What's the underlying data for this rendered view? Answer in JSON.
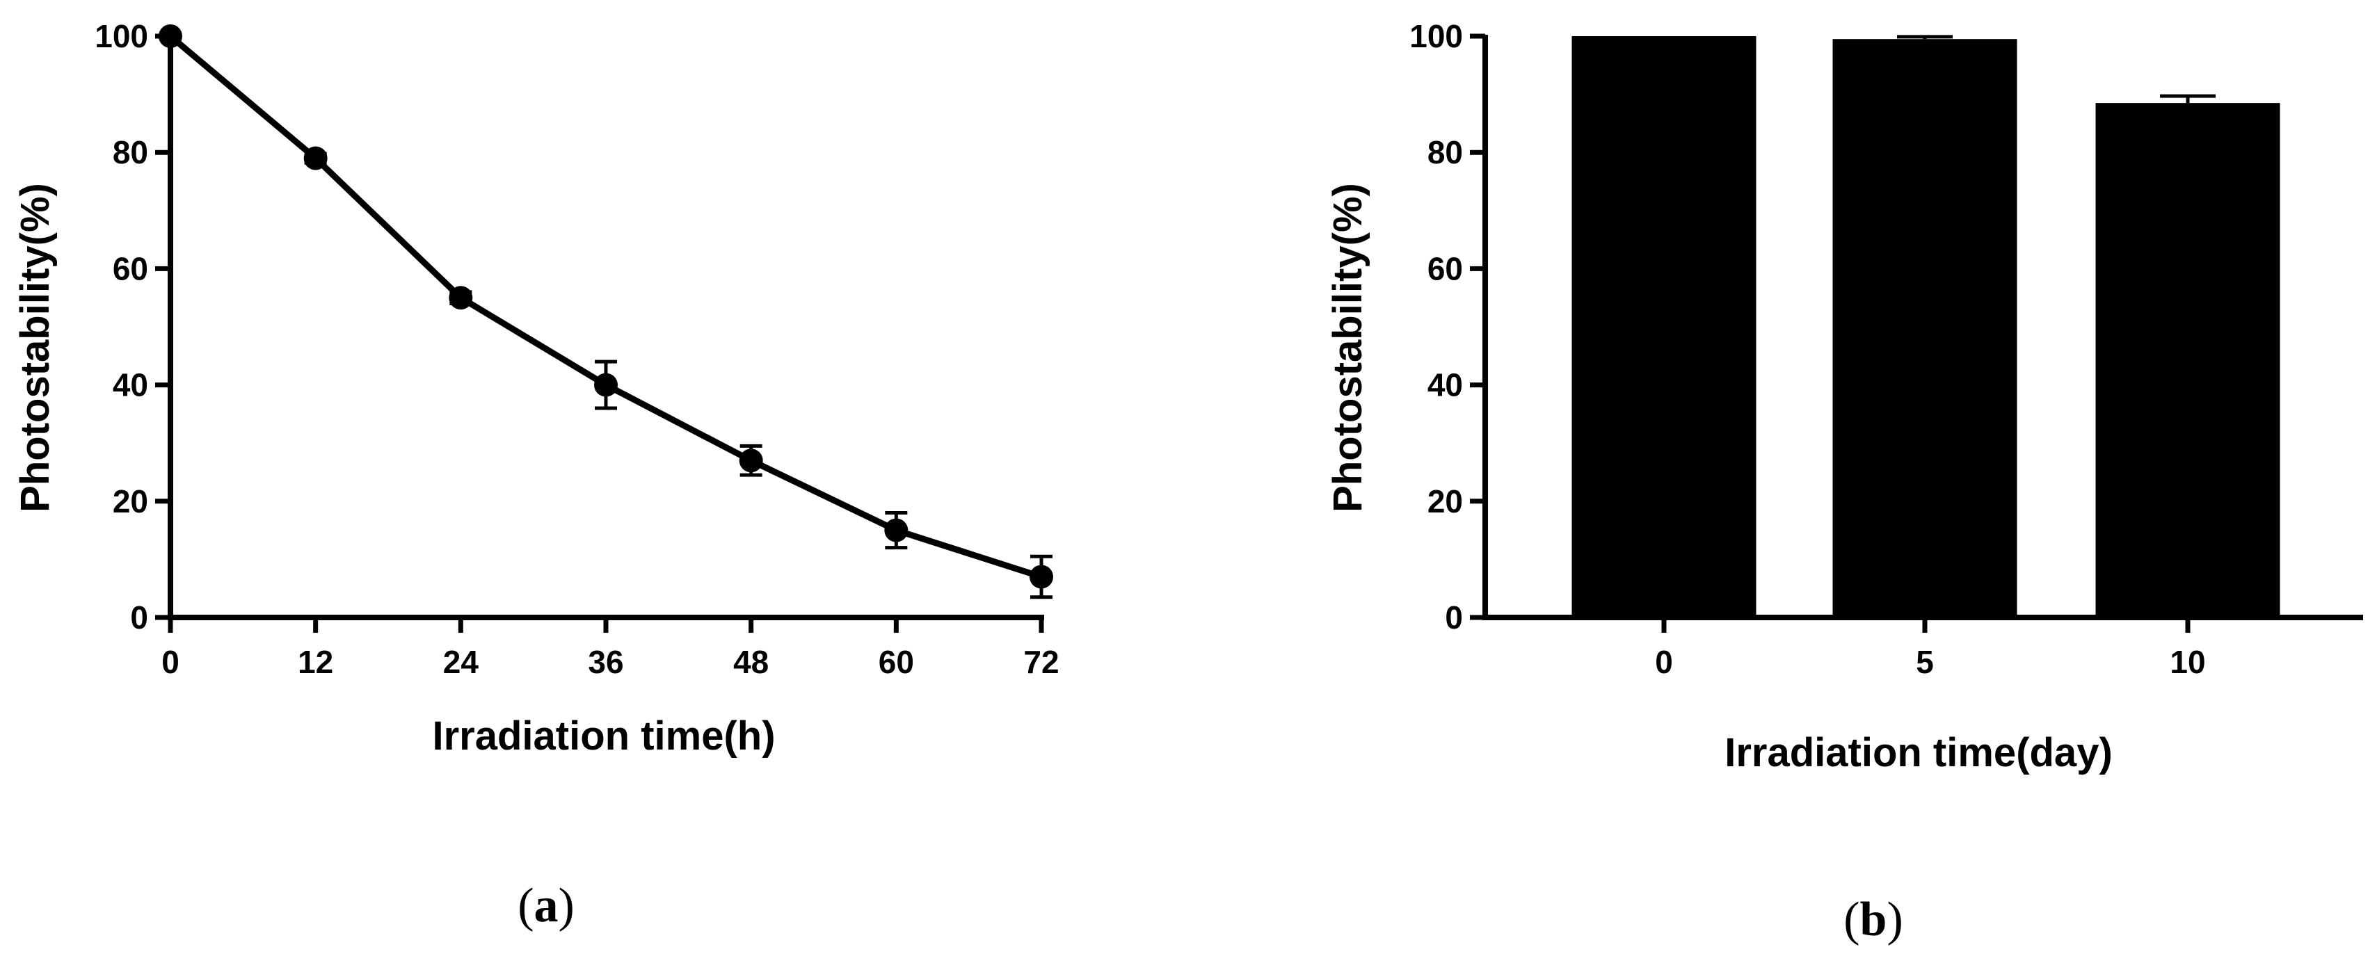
{
  "chart_data": [
    {
      "type": "line",
      "panel_label": "a",
      "xlabel": "Irradiation time(h)",
      "ylabel": "Photostability(%)",
      "x": [
        0,
        12,
        24,
        36,
        48,
        60,
        72
      ],
      "xticks": [
        "0",
        "12",
        "24",
        "36",
        "48",
        "60",
        "72"
      ],
      "xlim": [
        0,
        72
      ],
      "yticks": [
        "0",
        "20",
        "40",
        "60",
        "80",
        "100"
      ],
      "ylim": [
        0,
        100
      ],
      "grid": false,
      "series": [
        {
          "values": [
            100,
            79,
            55,
            40,
            27,
            15,
            7
          ],
          "errors": [
            0.5,
            0.8,
            1,
            4,
            2.5,
            3,
            3.5
          ],
          "color": "#000000"
        }
      ]
    },
    {
      "type": "bar",
      "panel_label": "b",
      "xlabel": "Irradiation time(day)",
      "ylabel": "Photostability(%)",
      "categories": [
        "0",
        "5",
        "10"
      ],
      "values": [
        100,
        99.5,
        88.5
      ],
      "errors": [
        0,
        0.4,
        1.2
      ],
      "yticks": [
        "0",
        "20",
        "40",
        "60",
        "80",
        "100"
      ],
      "ylim": [
        0,
        100
      ],
      "grid": false,
      "color": "#000000"
    }
  ]
}
